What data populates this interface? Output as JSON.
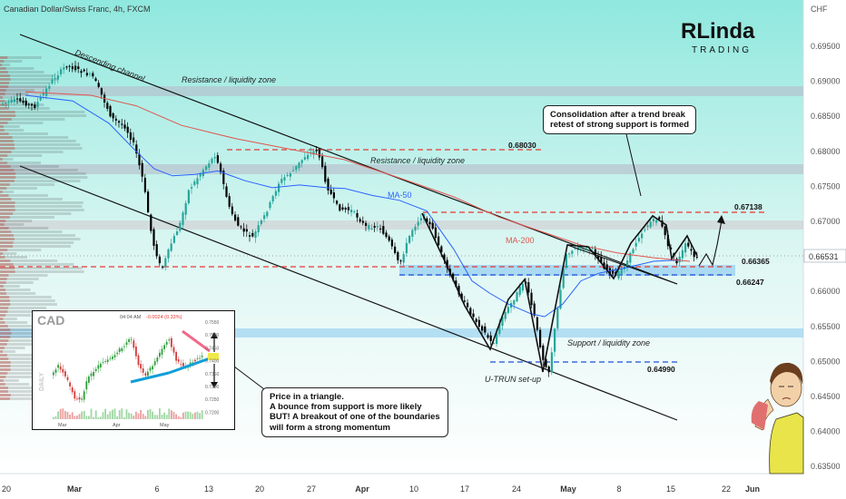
{
  "header": {
    "symbol_title": "Canadian Dollar/Swiss Franc, 4h, FXCM",
    "currency_label": "CHF"
  },
  "brand": {
    "top": "RLinda",
    "bottom": "TRADING"
  },
  "annotations": {
    "descending_channel": "Descending channel",
    "resistance_top": "Resistance / liquidity zone",
    "resistance_mid": "Resistance / liquidity zone",
    "support": "Support / liquidity zone",
    "ma50": "MA-50",
    "ma200": "MA-200",
    "uturn": "U-TRUN set-up",
    "level_68030": "0.68030",
    "level_67138": "0.67138",
    "level_66365": "0.66365",
    "level_66247": "0.66247",
    "level_64990": "0.64990",
    "current_price": "0.66531"
  },
  "notes": {
    "consolidation": [
      "Consolidation after a trend break",
      "retest of strong support is formed"
    ],
    "triangle": [
      "Price in a triangle.",
      "A bounce from support is more likely",
      "BUT! A breakout of one of the boundaries",
      "will form a strong momentum"
    ]
  },
  "inset": {
    "title": "CAD",
    "header_time": "04:04 AM",
    "header_change": "-0.0024 (0.33%)",
    "side_label": "DAILY",
    "x_labels": [
      "Mar",
      "Apr",
      "May"
    ],
    "y_labels": [
      "0.7550",
      "0.7500",
      "0.7450",
      "0.7400",
      "0.7350",
      "0.7300",
      "0.7250",
      "0.7200"
    ]
  },
  "colors": {
    "bull": "#26a69a",
    "bear": "#000000",
    "ma50": "#2962ff",
    "ma200": "#e0564f",
    "resistance_zone": "#b7b7c7",
    "support_zone": "#7ec3f0",
    "dashed_red": "#e53935",
    "dashed_blue": "#1e4fd8",
    "bg_top": "#8fe8de",
    "bg_bottom": "#ffffff"
  },
  "chart_data": {
    "type": "line",
    "title": "Canadian Dollar/Swiss Franc, 4h, FXCM",
    "xlabel": "",
    "ylabel": "CHF",
    "ylim": [
      0.6346,
      0.6995
    ],
    "y_ticks": [
      "0.69500",
      "0.69000",
      "0.68500",
      "0.68000",
      "0.67500",
      "0.67000",
      "0.66500",
      "0.66000",
      "0.65500",
      "0.65000",
      "0.64500",
      "0.64000",
      "0.63500"
    ],
    "x_ticks": [
      "20",
      "Mar",
      "6",
      "13",
      "20",
      "27",
      "Apr",
      "10",
      "17",
      "24",
      "May",
      "8",
      "15",
      "22",
      "Jun"
    ],
    "series": [
      {
        "name": "MA-50",
        "values": [
          [
            28,
            0.688
          ],
          [
            80,
            0.6872
          ],
          [
            120,
            0.684
          ],
          [
            150,
            0.68
          ],
          [
            170,
            0.6775
          ],
          [
            190,
            0.6765
          ],
          [
            215,
            0.6767
          ],
          [
            240,
            0.6772
          ],
          [
            270,
            0.6758
          ],
          [
            300,
            0.6748
          ],
          [
            330,
            0.6752
          ],
          [
            360,
            0.6748
          ],
          [
            380,
            0.6747
          ],
          [
            410,
            0.6737
          ],
          [
            440,
            0.673
          ],
          [
            470,
            0.6715
          ],
          [
            500,
            0.666
          ],
          [
            520,
            0.6615
          ],
          [
            540,
            0.6597
          ],
          [
            560,
            0.6582
          ],
          [
            585,
            0.6568
          ],
          [
            600,
            0.6564
          ],
          [
            620,
            0.6582
          ],
          [
            640,
            0.6615
          ],
          [
            660,
            0.6626
          ],
          [
            690,
            0.6634
          ],
          [
            720,
            0.6643
          ],
          [
            750,
            0.6645
          ]
        ]
      },
      {
        "name": "MA-200",
        "values": [
          [
            28,
            0.6885
          ],
          [
            100,
            0.688
          ],
          [
            150,
            0.6865
          ],
          [
            200,
            0.6837
          ],
          [
            260,
            0.6818
          ],
          [
            320,
            0.6803
          ],
          [
            380,
            0.6788
          ],
          [
            440,
            0.6762
          ],
          [
            500,
            0.6735
          ],
          [
            550,
            0.6706
          ],
          [
            600,
            0.6684
          ],
          [
            640,
            0.6666
          ],
          [
            680,
            0.6655
          ],
          [
            720,
            0.6648
          ],
          [
            760,
            0.6643
          ]
        ]
      }
    ],
    "levels": [
      {
        "label": "0.68030",
        "value": 0.6803
      },
      {
        "label": "0.67138",
        "value": 0.67138
      },
      {
        "label": "0.66365",
        "value": 0.66365
      },
      {
        "label": "0.66247",
        "value": 0.66247
      },
      {
        "label": "0.64990",
        "value": 0.6499
      }
    ],
    "current_price": 0.66531,
    "zones": [
      {
        "name": "Resistance / liquidity zone",
        "from": 0.6885,
        "to": 0.6895
      },
      {
        "name": "Resistance / liquidity zone",
        "from": 0.6771,
        "to": 0.6782
      },
      {
        "name": "Support / liquidity zone",
        "from": 0.6538,
        "to": 0.6548
      }
    ],
    "grid": false,
    "legend": "none"
  }
}
